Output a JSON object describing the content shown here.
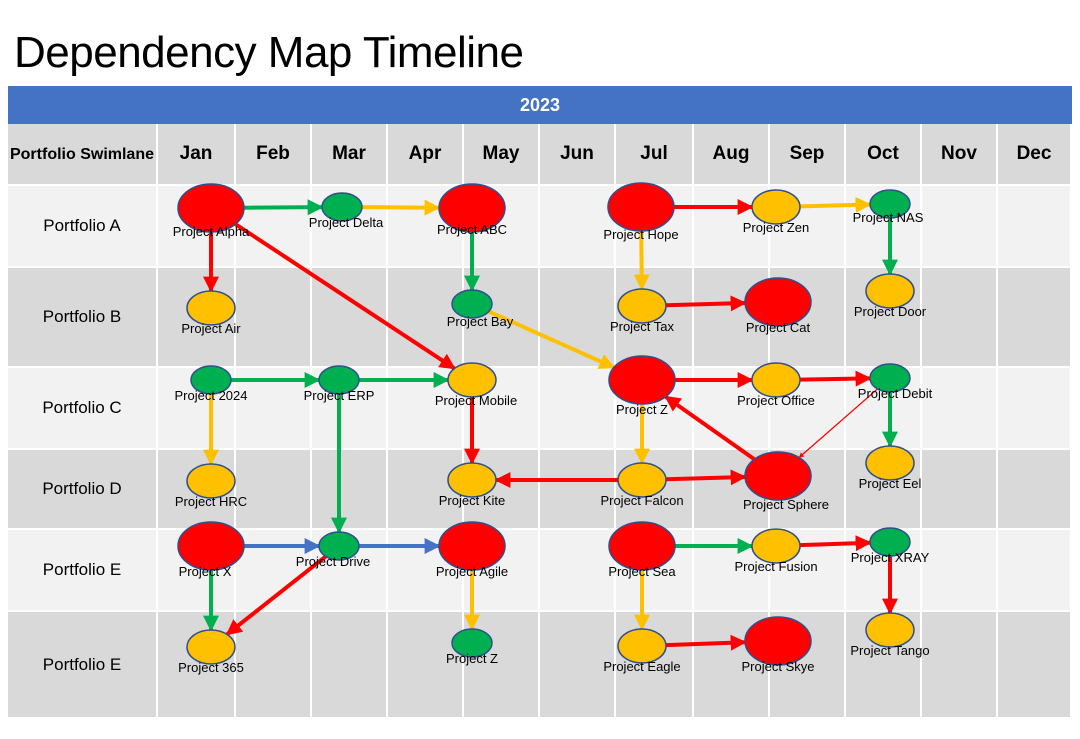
{
  "title": "Dependency Map Timeline",
  "year": "2023",
  "swimlane_header": "Portfolio Swimlane",
  "months": [
    "Jan",
    "Feb",
    "Mar",
    "Apr",
    "May",
    "Jun",
    "Jul",
    "Aug",
    "Sep",
    "Oct",
    "Nov",
    "Dec"
  ],
  "lanes": [
    "Portfolio A",
    "Portfolio B",
    "Portfolio C",
    "Portfolio D",
    "Portfolio E",
    "Portfolio E"
  ],
  "colors": {
    "red": "#ff0000",
    "green": "#00b050",
    "amber": "#ffc000",
    "blue": "#4472c4",
    "outline": "#2f4f8f"
  },
  "nodes": [
    {
      "id": "alpha",
      "label": "Project Alpha",
      "status": "red",
      "size": "large",
      "month": "Jan",
      "lane": 0
    },
    {
      "id": "delta",
      "label": "Project Delta",
      "status": "green",
      "size": "small",
      "month": "Mar",
      "lane": 0
    },
    {
      "id": "abc",
      "label": "Project ABC",
      "status": "red",
      "size": "large",
      "month": "May",
      "lane": 0
    },
    {
      "id": "hope",
      "label": "Project Hope",
      "status": "red",
      "size": "large",
      "month": "Jul",
      "lane": 0
    },
    {
      "id": "zen",
      "label": "Project Zen",
      "status": "amber",
      "size": "medium",
      "month": "Sep",
      "lane": 0
    },
    {
      "id": "nas",
      "label": "Project NAS",
      "status": "green",
      "size": "small",
      "month": "Oct",
      "lane": 0
    },
    {
      "id": "air",
      "label": "Project Air",
      "status": "amber",
      "size": "medium",
      "month": "Jan",
      "lane": 1
    },
    {
      "id": "bay",
      "label": "Project Bay",
      "status": "green",
      "size": "small",
      "month": "May",
      "lane": 1
    },
    {
      "id": "tax",
      "label": "Project Tax",
      "status": "amber",
      "size": "medium",
      "month": "Jul",
      "lane": 1
    },
    {
      "id": "cat",
      "label": "Project Cat",
      "status": "red",
      "size": "large",
      "month": "Aug-Sep",
      "lane": 1
    },
    {
      "id": "door",
      "label": "Project Door",
      "status": "amber",
      "size": "medium",
      "month": "Oct",
      "lane": 1
    },
    {
      "id": "p2024",
      "label": "Project 2024",
      "status": "green",
      "size": "small",
      "month": "Jan",
      "lane": 2
    },
    {
      "id": "erp",
      "label": "Project ERP",
      "status": "green",
      "size": "small",
      "month": "Mar",
      "lane": 2
    },
    {
      "id": "mobile",
      "label": "Project Mobile",
      "status": "amber",
      "size": "medium",
      "month": "May",
      "lane": 2
    },
    {
      "id": "z1",
      "label": "Project Z",
      "status": "red",
      "size": "large",
      "month": "Jul",
      "lane": 2
    },
    {
      "id": "office",
      "label": "Project Office",
      "status": "amber",
      "size": "medium",
      "month": "Sep",
      "lane": 2
    },
    {
      "id": "debit",
      "label": "Project Debit",
      "status": "green",
      "size": "small",
      "month": "Oct",
      "lane": 2
    },
    {
      "id": "hrc",
      "label": "Project HRC",
      "status": "amber",
      "size": "medium",
      "month": "Jan",
      "lane": 3
    },
    {
      "id": "kite",
      "label": "Project Kite",
      "status": "amber",
      "size": "medium",
      "month": "May",
      "lane": 3
    },
    {
      "id": "falcon",
      "label": "Project Falcon",
      "status": "amber",
      "size": "medium",
      "month": "Jul",
      "lane": 3
    },
    {
      "id": "sphere",
      "label": "Project Sphere",
      "status": "red",
      "size": "large",
      "month": "Sep",
      "lane": 3
    },
    {
      "id": "eel",
      "label": "Project Eel",
      "status": "amber",
      "size": "medium",
      "month": "Oct",
      "lane": 3
    },
    {
      "id": "x",
      "label": "Project X",
      "status": "red",
      "size": "large",
      "month": "Jan",
      "lane": 4
    },
    {
      "id": "drive",
      "label": "Project Drive",
      "status": "green",
      "size": "small",
      "month": "Mar",
      "lane": 4
    },
    {
      "id": "agile",
      "label": "Project Agile",
      "status": "red",
      "size": "large",
      "month": "May",
      "lane": 4
    },
    {
      "id": "sea",
      "label": "Project Sea",
      "status": "red",
      "size": "large",
      "month": "Jul",
      "lane": 4
    },
    {
      "id": "fusion",
      "label": "Project Fusion",
      "status": "amber",
      "size": "medium",
      "month": "Sep",
      "lane": 4
    },
    {
      "id": "xray",
      "label": "Project XRAY",
      "status": "green",
      "size": "small",
      "month": "Oct",
      "lane": 4
    },
    {
      "id": "p365",
      "label": "Project 365",
      "status": "amber",
      "size": "medium",
      "month": "Jan",
      "lane": 5
    },
    {
      "id": "z2",
      "label": "Project Z",
      "status": "green",
      "size": "small",
      "month": "May",
      "lane": 5
    },
    {
      "id": "eagle",
      "label": "Project Eagle",
      "status": "amber",
      "size": "medium",
      "month": "Jul",
      "lane": 5
    },
    {
      "id": "skye",
      "label": "Project Skye",
      "status": "red",
      "size": "large",
      "month": "Aug-Sep",
      "lane": 5
    },
    {
      "id": "tango",
      "label": "Project Tango",
      "status": "amber",
      "size": "medium",
      "month": "Oct",
      "lane": 5
    }
  ],
  "edges": [
    {
      "from": "alpha",
      "to": "delta",
      "color": "green"
    },
    {
      "from": "delta",
      "to": "abc",
      "color": "amber"
    },
    {
      "from": "alpha",
      "to": "air",
      "color": "red"
    },
    {
      "from": "alpha",
      "to": "mobile",
      "color": "red"
    },
    {
      "from": "abc",
      "to": "bay",
      "color": "green"
    },
    {
      "from": "bay",
      "to": "z1",
      "color": "amber"
    },
    {
      "from": "hope",
      "to": "zen",
      "color": "red"
    },
    {
      "from": "zen",
      "to": "nas",
      "color": "amber"
    },
    {
      "from": "nas",
      "to": "door",
      "color": "green"
    },
    {
      "from": "hope",
      "to": "tax",
      "color": "amber"
    },
    {
      "from": "tax",
      "to": "cat",
      "color": "red"
    },
    {
      "from": "p2024",
      "to": "erp",
      "color": "green"
    },
    {
      "from": "erp",
      "to": "mobile",
      "color": "green"
    },
    {
      "from": "p2024",
      "to": "hrc",
      "color": "amber"
    },
    {
      "from": "mobile",
      "to": "kite",
      "color": "red"
    },
    {
      "from": "erp",
      "to": "drive",
      "color": "green"
    },
    {
      "from": "z1",
      "to": "office",
      "color": "red"
    },
    {
      "from": "office",
      "to": "debit",
      "color": "red"
    },
    {
      "from": "debit",
      "to": "eel",
      "color": "green"
    },
    {
      "from": "debit",
      "to": "sphere",
      "color": "red",
      "thin": true
    },
    {
      "from": "z1",
      "to": "falcon",
      "color": "amber"
    },
    {
      "from": "sphere",
      "to": "z1",
      "color": "red"
    },
    {
      "from": "falcon",
      "to": "kite",
      "color": "red"
    },
    {
      "from": "falcon",
      "to": "sphere",
      "color": "red"
    },
    {
      "from": "x",
      "to": "drive",
      "color": "blue"
    },
    {
      "from": "drive",
      "to": "agile",
      "color": "blue"
    },
    {
      "from": "x",
      "to": "p365",
      "color": "green"
    },
    {
      "from": "drive",
      "to": "p365",
      "color": "red"
    },
    {
      "from": "agile",
      "to": "z2",
      "color": "amber"
    },
    {
      "from": "sea",
      "to": "fusion",
      "color": "green"
    },
    {
      "from": "fusion",
      "to": "xray",
      "color": "red"
    },
    {
      "from": "xray",
      "to": "tango",
      "color": "red"
    },
    {
      "from": "sea",
      "to": "eagle",
      "color": "amber"
    },
    {
      "from": "eagle",
      "to": "skye",
      "color": "red"
    }
  ]
}
